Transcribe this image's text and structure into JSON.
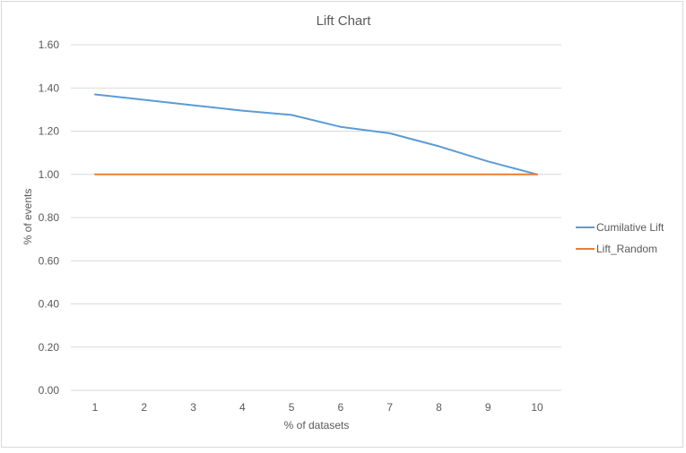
{
  "chart_data": {
    "type": "line",
    "title": "Lift Chart",
    "xlabel": "% of datasets",
    "ylabel": "% of events",
    "categories": [
      "1",
      "2",
      "3",
      "4",
      "5",
      "6",
      "7",
      "8",
      "9",
      "10"
    ],
    "ylim": [
      0,
      1.6
    ],
    "yticks": [
      "0.00",
      "0.20",
      "0.40",
      "0.60",
      "0.80",
      "1.00",
      "1.20",
      "1.40",
      "1.60"
    ],
    "grid": true,
    "legend_position": "right",
    "series": [
      {
        "name": "Cumilative Lift",
        "color": "#5b9bd5",
        "values": [
          1.37,
          1.345,
          1.32,
          1.295,
          1.275,
          1.22,
          1.19,
          1.13,
          1.06,
          1.0
        ]
      },
      {
        "name": "Lift_Random",
        "color": "#ed7d31",
        "values": [
          1.0,
          1.0,
          1.0,
          1.0,
          1.0,
          1.0,
          1.0,
          1.0,
          1.0,
          1.0
        ]
      }
    ]
  }
}
